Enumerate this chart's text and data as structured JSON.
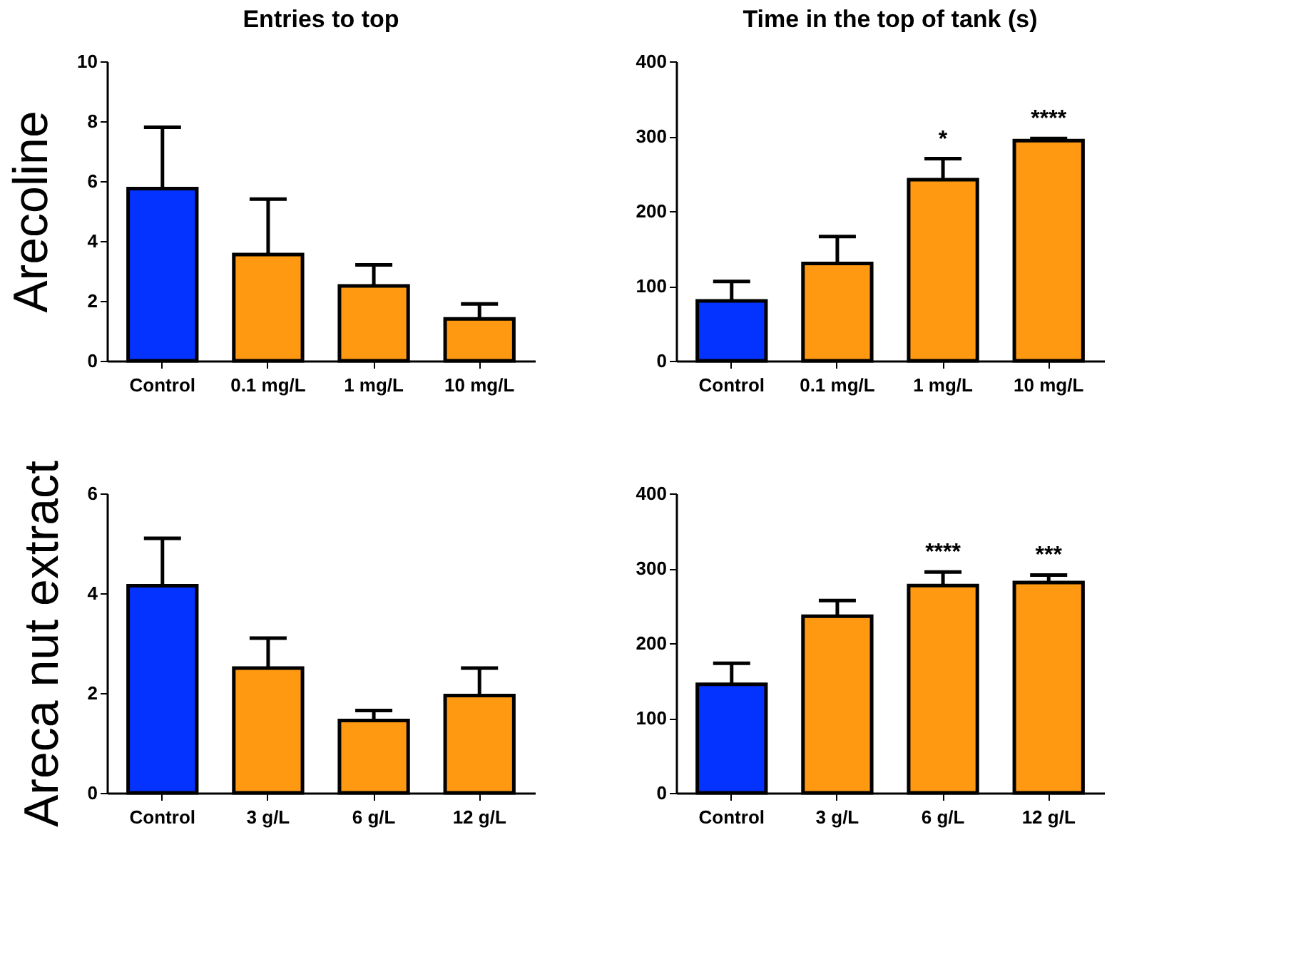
{
  "chart_data": [
    {
      "type": "bar",
      "title": "Entries to top",
      "ylabel": "Arecoline",
      "categories": [
        "Control",
        "0.1 mg/L",
        "1 mg/L",
        "10 mg/L"
      ],
      "values": [
        5.75,
        3.55,
        2.5,
        1.4
      ],
      "colors": [
        "#0433ff",
        "#ff9912",
        "#ff9912",
        "#ff9912"
      ],
      "errors": [
        [
          5.75,
          7.8
        ],
        [
          3.55,
          5.4
        ],
        [
          2.5,
          3.2
        ],
        [
          1.4,
          1.9
        ]
      ],
      "ylim": [
        0,
        10
      ],
      "yticks": [
        0,
        2,
        4,
        6,
        8,
        10
      ]
    },
    {
      "type": "bar",
      "title": "Time in the top of tank (s)",
      "categories": [
        "Control",
        "0.1 mg/L",
        "1 mg/L",
        "10 mg/L"
      ],
      "values": [
        80,
        130,
        242,
        294
      ],
      "colors": [
        "#0433ff",
        "#ff9912",
        "#ff9912",
        "#ff9912"
      ],
      "errors": [
        [
          80,
          106
        ],
        [
          130,
          166
        ],
        [
          242,
          270
        ],
        [
          294,
          297
        ]
      ],
      "ylim": [
        0,
        400
      ],
      "yticks": [
        0,
        100,
        200,
        300,
        400
      ],
      "annotations": [
        {
          "text": "*",
          "x": "1 mg/L",
          "y": 270
        },
        {
          "text": "****",
          "x": "10 mg/L",
          "y": 297
        }
      ]
    },
    {
      "type": "bar",
      "ylabel": "Areca nut extract",
      "categories": [
        "Control",
        "3 g/L",
        "6 g/L",
        "12 g/L"
      ],
      "values": [
        4.15,
        2.5,
        1.45,
        1.95
      ],
      "colors": [
        "#0433ff",
        "#ff9912",
        "#ff9912",
        "#ff9912"
      ],
      "errors": [
        [
          4.15,
          5.1
        ],
        [
          2.5,
          3.1
        ],
        [
          1.45,
          1.65
        ],
        [
          1.95,
          2.5
        ]
      ],
      "ylim": [
        0,
        6
      ],
      "yticks": [
        0,
        2,
        4,
        6
      ]
    },
    {
      "type": "bar",
      "categories": [
        "Control",
        "3 g/L",
        "6 g/L",
        "12 g/L"
      ],
      "values": [
        145,
        236,
        277,
        281
      ],
      "colors": [
        "#0433ff",
        "#ff9912",
        "#ff9912",
        "#ff9912"
      ],
      "errors": [
        [
          145,
          173
        ],
        [
          236,
          257
        ],
        [
          277,
          295
        ],
        [
          281,
          291
        ]
      ],
      "ylim": [
        0,
        400
      ],
      "yticks": [
        0,
        100,
        200,
        300,
        400
      ],
      "annotations": [
        {
          "text": "****",
          "x": "6 g/L",
          "y": 295
        },
        {
          "text": "***",
          "x": "12 g/L",
          "y": 291
        }
      ]
    }
  ]
}
